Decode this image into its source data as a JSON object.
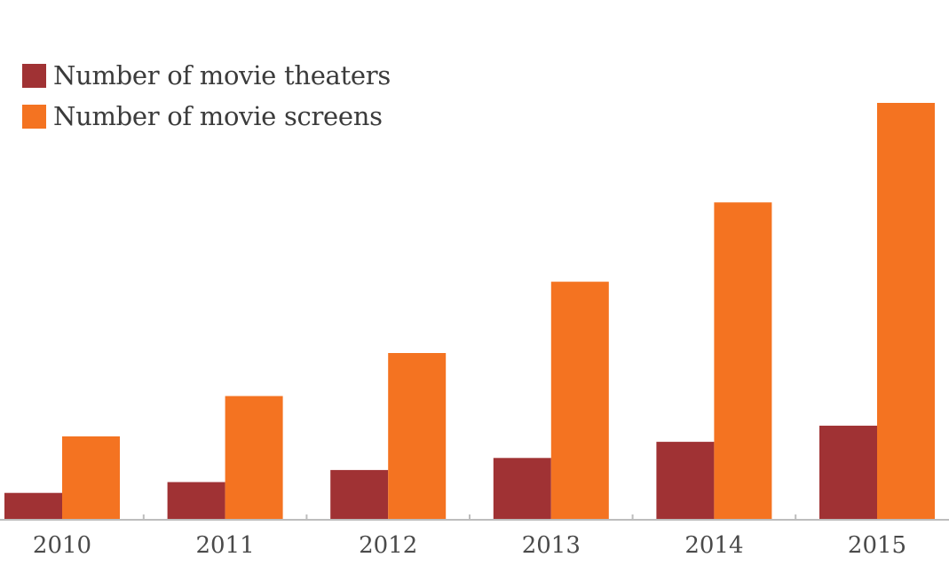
{
  "chart_data": {
    "type": "bar",
    "categories": [
      "2010",
      "2011",
      "2012",
      "2013",
      "2014",
      "2015"
    ],
    "series": [
      {
        "name": "Number of movie theaters",
        "color": "#a03234",
        "values": [
          2000,
          2800,
          3700,
          4600,
          5800,
          7000
        ]
      },
      {
        "name": "Number of movie screens",
        "color": "#f47321",
        "values": [
          6200,
          9200,
          12400,
          17700,
          23600,
          31000
        ]
      }
    ],
    "title": "",
    "xlabel": "",
    "ylabel": "",
    "ylim": [
      0,
      31000
    ],
    "grid": false,
    "legend_position": "top-left"
  }
}
